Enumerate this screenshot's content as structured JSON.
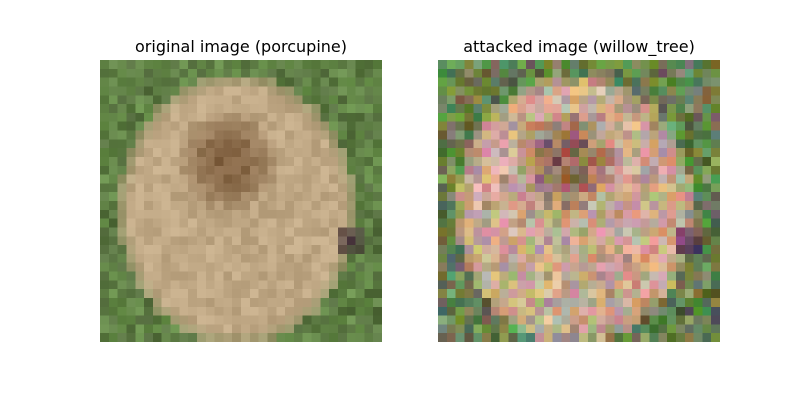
{
  "panels": [
    {
      "title": "original image (porcupine)",
      "kind": "original"
    },
    {
      "title": "attacked image (willow_tree)",
      "kind": "attacked"
    }
  ],
  "colors": {
    "background": "#ffffff",
    "grass": "#5f7f45",
    "fur_light": "#c0a885",
    "fur_dark": "#7b5a3a",
    "nose": "#3f2b33"
  }
}
